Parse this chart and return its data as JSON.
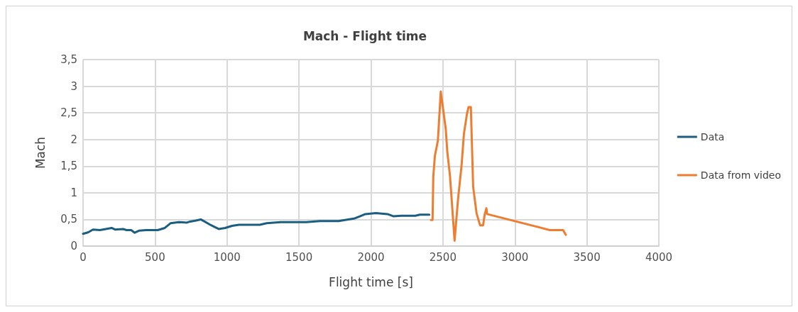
{
  "chart_data": {
    "type": "line",
    "title": "Mach - Flight time",
    "xlabel": "Flight time [s]",
    "ylabel": "Mach",
    "xlim": [
      0,
      4000
    ],
    "xticks": [
      0,
      500,
      1000,
      1500,
      2000,
      2500,
      3000,
      3500,
      4000
    ],
    "ylim": [
      0,
      3.5
    ],
    "yticks": [
      0,
      {
        "value": 0.5,
        "label": "0,5"
      },
      1,
      {
        "value": 1.5,
        "label": "1,5"
      },
      2,
      {
        "value": 2.5,
        "label": "2,5"
      },
      3,
      {
        "value": 3.5,
        "label": "3,5"
      }
    ],
    "grid": true,
    "legend": "right",
    "marker": "none",
    "line_style": "solid",
    "series": [
      {
        "name": "Data",
        "color": "#1b5e80",
        "x": [
          0,
          37,
          69,
          117,
          198,
          222,
          278,
          302,
          334,
          359,
          391,
          439,
          519,
          568,
          609,
          665,
          721,
          745,
          785,
          818,
          890,
          942,
          987,
          1035,
          1083,
          1228,
          1276,
          1373,
          1550,
          1646,
          1775,
          1888,
          1961,
          2034,
          2115,
          2155,
          2211,
          2308,
          2340,
          2405
        ],
        "values": [
          0.23,
          0.26,
          0.31,
          0.3,
          0.34,
          0.31,
          0.32,
          0.3,
          0.3,
          0.25,
          0.29,
          0.3,
          0.3,
          0.34,
          0.43,
          0.45,
          0.44,
          0.46,
          0.48,
          0.5,
          0.39,
          0.32,
          0.34,
          0.38,
          0.4,
          0.4,
          0.43,
          0.45,
          0.45,
          0.47,
          0.47,
          0.52,
          0.6,
          0.62,
          0.6,
          0.56,
          0.57,
          0.57,
          0.59,
          0.59
        ]
      },
      {
        "name": "Data from video",
        "color": "#ed7d31",
        "x": [
          2417,
          2428,
          2433,
          2444,
          2465,
          2485,
          2520,
          2530,
          2549,
          2581,
          2605,
          2630,
          2646,
          2667,
          2678,
          2694,
          2710,
          2734,
          2758,
          2779,
          2790,
          2802,
          2807,
          3242,
          3335,
          3354
        ],
        "values": [
          0.49,
          0.49,
          1.3,
          1.69,
          1.98,
          2.9,
          2.19,
          1.78,
          1.32,
          0.1,
          0.88,
          1.53,
          2.11,
          2.48,
          2.61,
          2.61,
          1.11,
          0.61,
          0.39,
          0.39,
          0.59,
          0.71,
          0.6,
          0.3,
          0.3,
          0.21
        ]
      }
    ]
  }
}
